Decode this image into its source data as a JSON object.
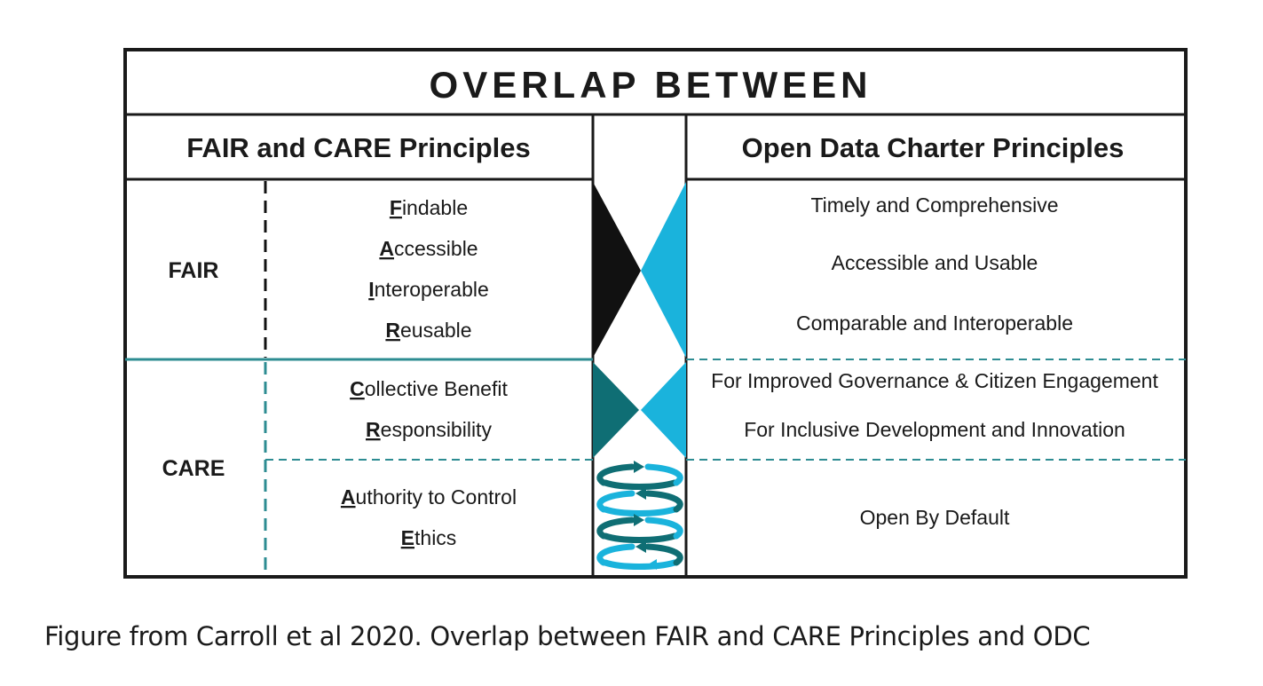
{
  "title": "OVERLAP BETWEEN",
  "left_header": "FAIR and CARE Principles",
  "right_header": "Open Data Charter Principles",
  "groups": {
    "fair": {
      "label": "FAIR",
      "items": [
        {
          "initial": "F",
          "rest": "indable"
        },
        {
          "initial": "A",
          "rest": "ccessible"
        },
        {
          "initial": "I",
          "rest": "nteroperable"
        },
        {
          "initial": "R",
          "rest": "eusable"
        }
      ]
    },
    "care": {
      "label": "CARE",
      "items_top": [
        {
          "initial": "C",
          "rest": "ollective Benefit"
        },
        {
          "initial": "R",
          "rest": "esponsibility"
        }
      ],
      "items_bottom": [
        {
          "initial": "A",
          "rest": "uthority to Control"
        },
        {
          "initial": "E",
          "rest": "thics"
        }
      ]
    }
  },
  "odc": {
    "fair_items": [
      "Timely and Comprehensive",
      "Accessible and Usable",
      "Comparable and Interoperable"
    ],
    "care_top_items": [
      "For Improved Governance & Citizen Engagement",
      "For Inclusive Development and Innovation"
    ],
    "care_bottom_items": [
      "Open By Default"
    ]
  },
  "caption": "Figure from Carroll et al 2020. Overlap between FAIR and CARE Principles and ODC",
  "colors": {
    "border": "#1a1a1a",
    "cyan": "#1ab3dc",
    "teal": "#0f6e74",
    "dashed_teal": "#2d8c92",
    "black": "#111111"
  }
}
